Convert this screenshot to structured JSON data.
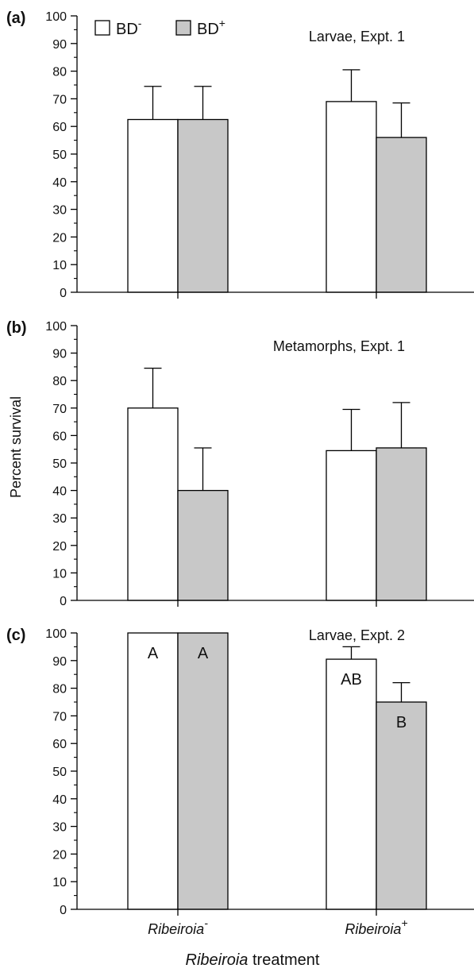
{
  "figure": {
    "ylabel": "Percent survival",
    "xlabel_italic": "Ribeiroia",
    "xlabel_rest": " treatment",
    "legend": {
      "items": [
        {
          "base": "BD",
          "sup": "-",
          "color": "#ffffff"
        },
        {
          "base": "BD",
          "sup": "+",
          "color": "#c8c8c8"
        }
      ]
    },
    "colors": {
      "axis": "#000000",
      "bar_outline": "#000000",
      "bd_minus": "#ffffff",
      "bd_plus": "#c8c8c8"
    }
  },
  "chart_data": [
    {
      "type": "bar",
      "panel_label": "(a)",
      "title": "Larvae, Expt. 1",
      "categories": [
        {
          "base": "Ribeiroia",
          "sup": "-"
        },
        {
          "base": "Ribeiroia",
          "sup": "+"
        }
      ],
      "series": [
        {
          "name": "BD-",
          "values": [
            62.5,
            69
          ],
          "errors": [
            12,
            11.5
          ],
          "letters": [
            "",
            ""
          ]
        },
        {
          "name": "BD+",
          "values": [
            62.5,
            56
          ],
          "errors": [
            12,
            12.5
          ],
          "letters": [
            "",
            ""
          ]
        }
      ],
      "ylim": [
        0,
        100
      ],
      "yticks": [
        0,
        10,
        20,
        30,
        40,
        50,
        60,
        70,
        80,
        90,
        100
      ],
      "show_category_labels": false,
      "legend": "top-left"
    },
    {
      "type": "bar",
      "panel_label": "(b)",
      "title": "Metamorphs, Expt. 1",
      "categories": [
        {
          "base": "Ribeiroia",
          "sup": "-"
        },
        {
          "base": "Ribeiroia",
          "sup": "+"
        }
      ],
      "series": [
        {
          "name": "BD-",
          "values": [
            70,
            54.5
          ],
          "errors": [
            14.5,
            15
          ],
          "letters": [
            "",
            ""
          ]
        },
        {
          "name": "BD+",
          "values": [
            40,
            55.5
          ],
          "errors": [
            15.5,
            16.5
          ],
          "letters": [
            "",
            ""
          ]
        }
      ],
      "ylim": [
        0,
        100
      ],
      "yticks": [
        0,
        10,
        20,
        30,
        40,
        50,
        60,
        70,
        80,
        90,
        100
      ],
      "show_category_labels": false
    },
    {
      "type": "bar",
      "panel_label": "(c)",
      "title": "Larvae, Expt. 2",
      "categories": [
        {
          "base": "Ribeiroia",
          "sup": "-"
        },
        {
          "base": "Ribeiroia",
          "sup": "+"
        }
      ],
      "series": [
        {
          "name": "BD-",
          "values": [
            100,
            90.5
          ],
          "errors": [
            0,
            4.5
          ],
          "letters": [
            "A",
            "AB"
          ]
        },
        {
          "name": "BD+",
          "values": [
            100,
            75
          ],
          "errors": [
            0,
            7
          ],
          "letters": [
            "A",
            "B"
          ]
        }
      ],
      "ylim": [
        0,
        100
      ],
      "yticks": [
        0,
        10,
        20,
        30,
        40,
        50,
        60,
        70,
        80,
        90,
        100
      ],
      "show_category_labels": true
    }
  ]
}
